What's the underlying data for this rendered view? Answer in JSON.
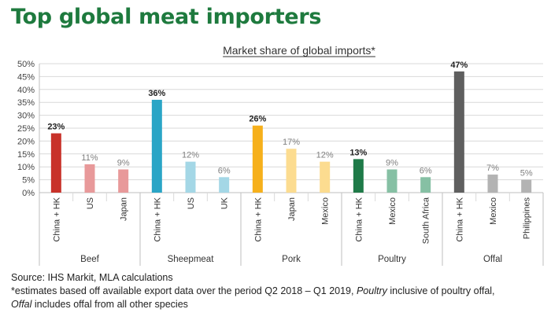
{
  "title": "Top global meat importers",
  "chart_data": {
    "type": "bar",
    "subtitle": "Market share of global imports*",
    "yticks": [
      "0%",
      "5%",
      "10%",
      "15%",
      "20%",
      "25%",
      "30%",
      "35%",
      "40%",
      "45%",
      "50%"
    ],
    "ylim": [
      0,
      50
    ],
    "grid": true,
    "groups": [
      {
        "name": "Beef",
        "bars": [
          {
            "label": "China + HK",
            "value": 23,
            "value_label": "23%",
            "color": "#c8322a",
            "bold": true
          },
          {
            "label": "US",
            "value": 11,
            "value_label": "11%",
            "color": "#e8999a",
            "bold": false
          },
          {
            "label": "Japan",
            "value": 9,
            "value_label": "9%",
            "color": "#e8999a",
            "bold": false
          }
        ]
      },
      {
        "name": "Sheepmeat",
        "bars": [
          {
            "label": "China + HK",
            "value": 36,
            "value_label": "36%",
            "color": "#2aa5c6",
            "bold": true
          },
          {
            "label": "US",
            "value": 12,
            "value_label": "12%",
            "color": "#a4d7e6",
            "bold": false
          },
          {
            "label": "UK",
            "value": 6,
            "value_label": "6%",
            "color": "#a4d7e6",
            "bold": false
          }
        ]
      },
      {
        "name": "Pork",
        "bars": [
          {
            "label": "China + HK",
            "value": 26,
            "value_label": "26%",
            "color": "#f6b01b",
            "bold": true
          },
          {
            "label": "Japan",
            "value": 17,
            "value_label": "17%",
            "color": "#fcdc90",
            "bold": false
          },
          {
            "label": "Mexico",
            "value": 12,
            "value_label": "12%",
            "color": "#fcdc90",
            "bold": false
          }
        ]
      },
      {
        "name": "Poultry",
        "bars": [
          {
            "label": "China + HK",
            "value": 13,
            "value_label": "13%",
            "color": "#1f7a48",
            "bold": true
          },
          {
            "label": "Mexico",
            "value": 9,
            "value_label": "9%",
            "color": "#86c0a4",
            "bold": false
          },
          {
            "label": "South Africa",
            "value": 6,
            "value_label": "6%",
            "color": "#86c0a4",
            "bold": false
          }
        ]
      },
      {
        "name": "Offal",
        "bars": [
          {
            "label": "China + HK",
            "value": 47,
            "value_label": "47%",
            "color": "#5f5f5f",
            "bold": true
          },
          {
            "label": "Mexico",
            "value": 7,
            "value_label": "7%",
            "color": "#b3b3b3",
            "bold": false
          },
          {
            "label": "Philippines",
            "value": 5,
            "value_label": "5%",
            "color": "#b3b3b3",
            "bold": false
          }
        ]
      }
    ]
  },
  "footer": {
    "source": "Source: IHS Markit, MLA calculations",
    "note_line1_a": "*estimates based off available export data over the period Q2 2018 – Q1 2019,",
    "note_line1_b": "Poultry",
    "note_line1_c": "inclusive of poultry offal,",
    "note_line2_a": "Offal",
    "note_line2_b": "includes offal from all other species"
  }
}
